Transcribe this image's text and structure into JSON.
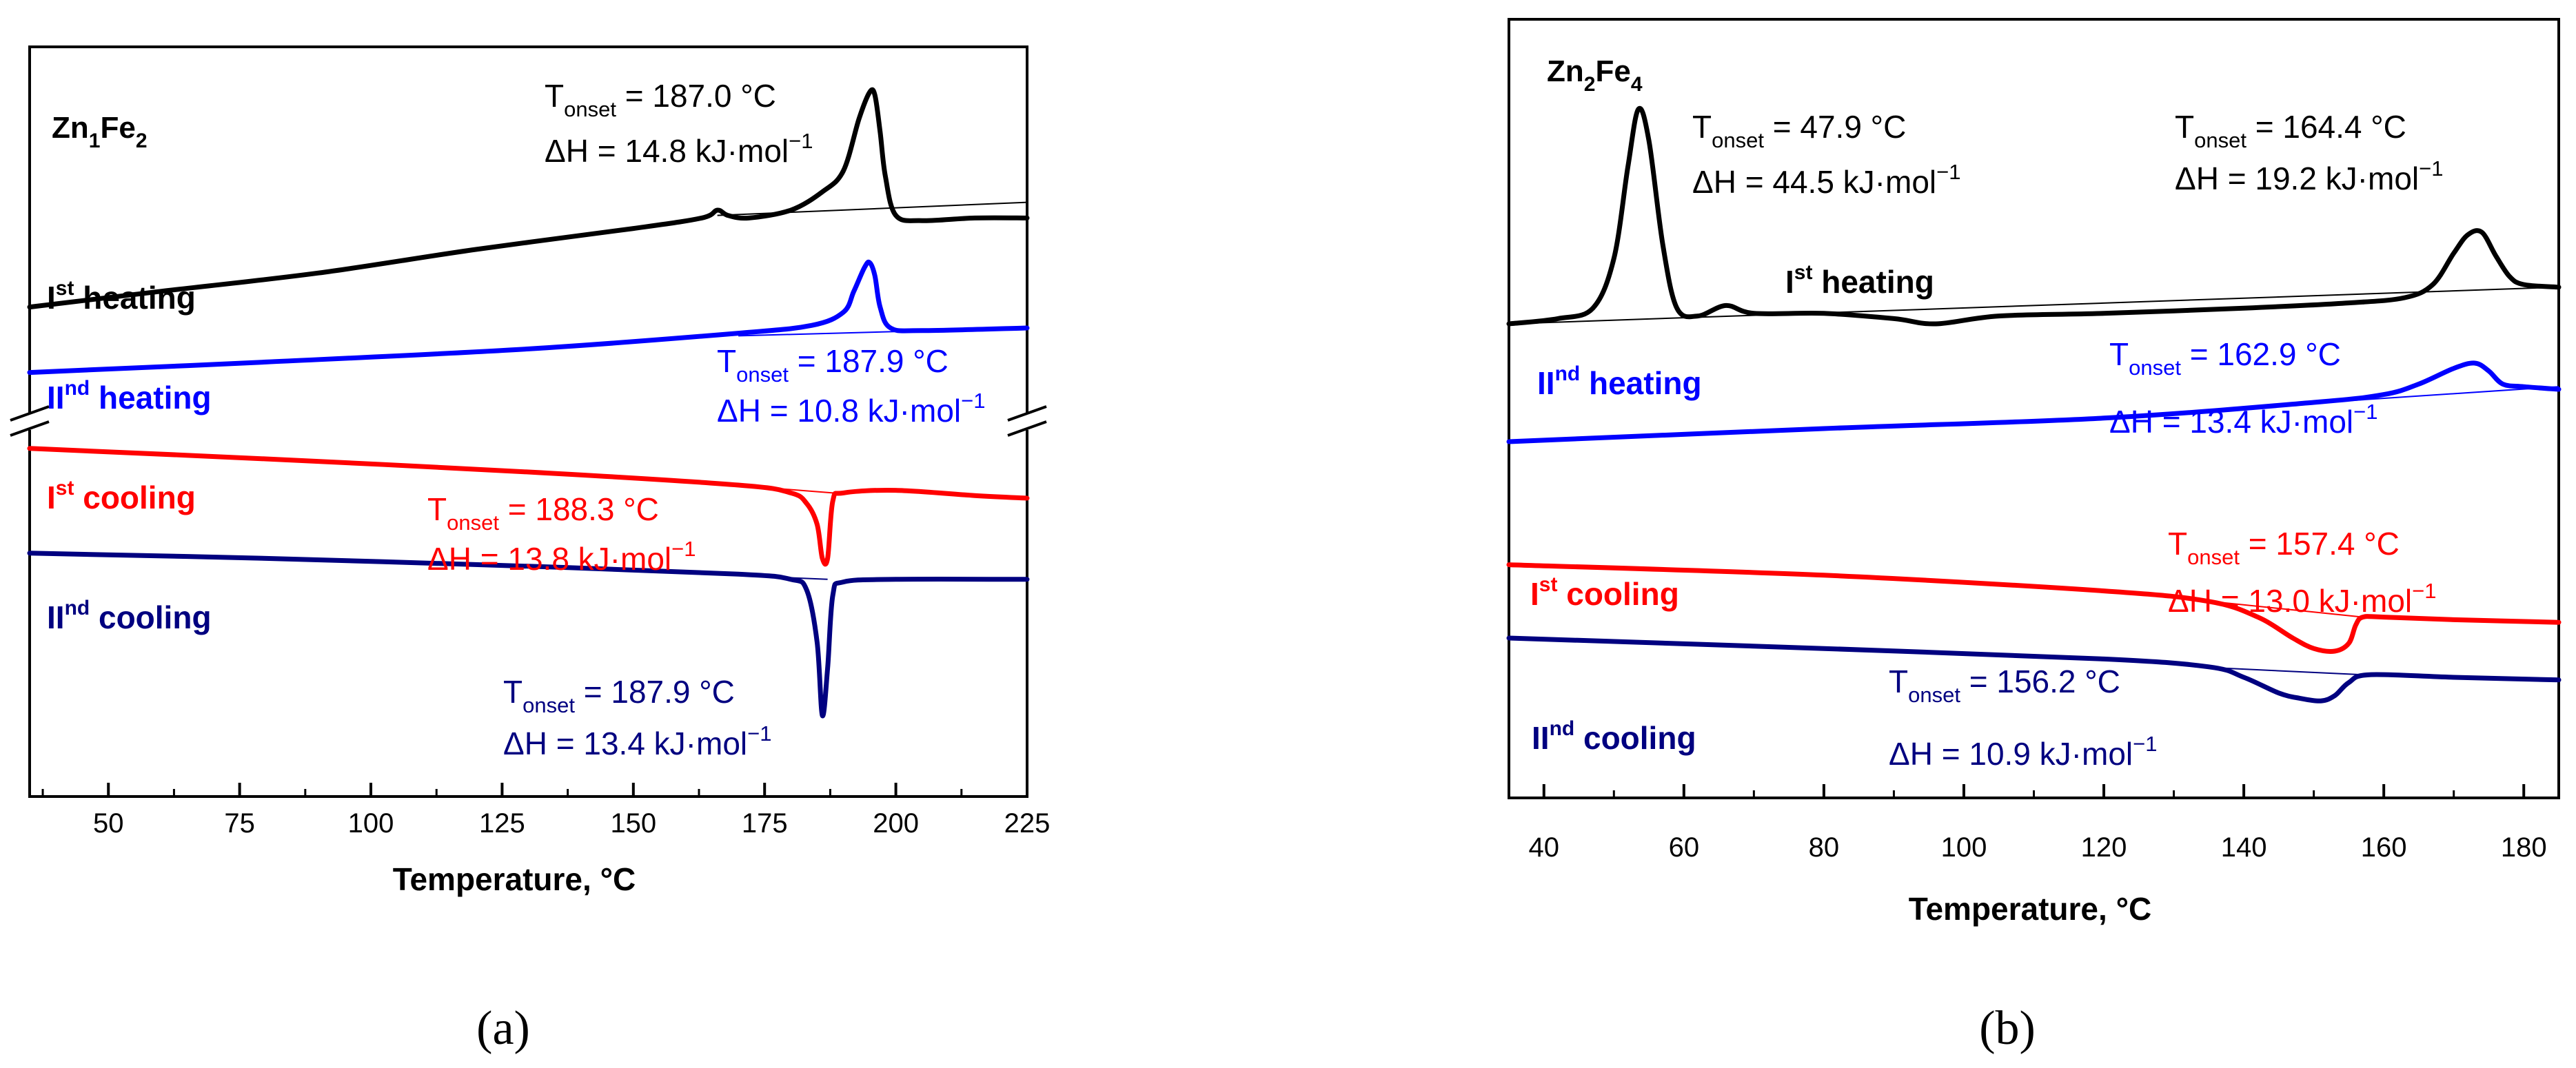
{
  "chart_data": [
    {
      "type": "line",
      "panel_label": "(a)",
      "sample": {
        "base": "Zn",
        "sub1": "1",
        "mid": "Fe",
        "sub2": "2"
      },
      "xlabel": "Temperature, °C",
      "xlim": [
        35,
        225
      ],
      "xticks": [
        "50",
        "75",
        "100",
        "125",
        "150",
        "175",
        "200",
        "225"
      ],
      "xtick_values": [
        50,
        75,
        100,
        125,
        150,
        175,
        200,
        225
      ],
      "axis_break": true,
      "curves": [
        {
          "key": "I_heating",
          "color": "#000000",
          "label_base": "I",
          "label_sup": "st",
          "label_rest": " heating",
          "points": [
            [
              35,
              0.92
            ],
            [
              60,
              0.86
            ],
            [
              90,
              0.79
            ],
            [
              120,
              0.7
            ],
            [
              150,
              0.62
            ],
            [
              163,
              0.58
            ],
            [
              166,
              0.55
            ],
            [
              168,
              0.57
            ],
            [
              172,
              0.58
            ],
            [
              180,
              0.55
            ],
            [
              186,
              0.48
            ],
            [
              190,
              0.4
            ],
            [
              193,
              0.2
            ],
            [
              195,
              0.1
            ],
            [
              196,
              0.11
            ],
            [
              197,
              0.25
            ],
            [
              198,
              0.42
            ],
            [
              200,
              0.57
            ],
            [
              205,
              0.59
            ],
            [
              215,
              0.58
            ],
            [
              225,
              0.58
            ]
          ],
          "baseline": [
            [
              166,
              0.57
            ],
            [
              225,
              0.52
            ]
          ]
        },
        {
          "key": "II_heating",
          "color": "#0000ff",
          "label_base": "II",
          "label_sup": "nd",
          "label_rest": " heating",
          "points": [
            [
              35,
              1.17
            ],
            [
              80,
              1.13
            ],
            [
              130,
              1.08
            ],
            [
              170,
              1.02
            ],
            [
              184,
              0.99
            ],
            [
              190,
              0.94
            ],
            [
              192,
              0.86
            ],
            [
              194,
              0.77
            ],
            [
              195,
              0.75
            ],
            [
              196,
              0.8
            ],
            [
              197,
              0.92
            ],
            [
              199,
              1.0
            ],
            [
              205,
              1.01
            ],
            [
              225,
              1.0
            ]
          ],
          "baseline": [
            [
              170,
              1.03
            ],
            [
              225,
              1.0
            ]
          ]
        },
        {
          "key": "I_cooling",
          "color": "#ff0000",
          "label_base": "I",
          "label_sup": "st",
          "label_rest": " cooling",
          "points": [
            [
              35,
              1.46
            ],
            [
              80,
              1.5
            ],
            [
              130,
              1.55
            ],
            [
              170,
              1.6
            ],
            [
              180,
              1.63
            ],
            [
              183,
              1.67
            ],
            [
              185,
              1.75
            ],
            [
              186,
              1.88
            ],
            [
              187,
              1.88
            ],
            [
              188,
              1.66
            ],
            [
              190,
              1.63
            ],
            [
              200,
              1.62
            ],
            [
              215,
              1.64
            ],
            [
              225,
              1.65
            ]
          ],
          "baseline": [
            [
              150,
              1.57
            ],
            [
              188,
              1.63
            ]
          ]
        },
        {
          "key": "II_cooling",
          "color": "#000080",
          "label_base": "II",
          "label_sup": "nd",
          "label_rest": " cooling",
          "points": [
            [
              35,
              1.86
            ],
            [
              80,
              1.88
            ],
            [
              130,
              1.91
            ],
            [
              170,
              1.94
            ],
            [
              180,
              1.96
            ],
            [
              183,
              2.0
            ],
            [
              185,
              2.2
            ],
            [
              186,
              2.48
            ],
            [
              187,
              2.3
            ],
            [
              188,
              2.02
            ],
            [
              190,
              1.97
            ],
            [
              200,
              1.96
            ],
            [
              225,
              1.96
            ]
          ],
          "baseline": [
            [
              140,
              1.92
            ],
            [
              187,
              1.96
            ]
          ]
        }
      ],
      "annotations": [
        {
          "key": "I_heating",
          "color": "#000000",
          "t_value": "187.0",
          "h_value": "14.8"
        },
        {
          "key": "II_heating",
          "color": "#0000ff",
          "t_value": "187.9",
          "h_value": "10.8"
        },
        {
          "key": "I_cooling",
          "color": "#ff0000",
          "t_value": "188.3",
          "h_value": "13.8"
        },
        {
          "key": "II_cooling",
          "color": "#000080",
          "t_value": "187.9",
          "h_value": "13.4"
        }
      ]
    },
    {
      "type": "line",
      "panel_label": "(b)",
      "sample": {
        "base": "Zn",
        "sub1": "2",
        "mid": "Fe",
        "sub2": "4"
      },
      "xlabel": "Temperature, °C",
      "xlim": [
        35,
        185
      ],
      "xticks": [
        "40",
        "60",
        "80",
        "100",
        "120",
        "140",
        "160",
        "180"
      ],
      "xtick_values": [
        40,
        60,
        80,
        100,
        120,
        140,
        160,
        180
      ],
      "axis_break": false,
      "curves": [
        {
          "key": "I_heating",
          "color": "#000000",
          "label_base": "I",
          "label_sup": "st",
          "label_rest": " heating",
          "points": [
            [
              35,
              1.0
            ],
            [
              42,
              0.98
            ],
            [
              47,
              0.94
            ],
            [
              50,
              0.75
            ],
            [
              52,
              0.4
            ],
            [
              53.5,
              0.18
            ],
            [
              55,
              0.3
            ],
            [
              57,
              0.7
            ],
            [
              59,
              0.94
            ],
            [
              62,
              0.97
            ],
            [
              66,
              0.93
            ],
            [
              70,
              0.96
            ],
            [
              80,
              0.96
            ],
            [
              90,
              0.98
            ],
            [
              96,
              1.0
            ],
            [
              105,
              0.97
            ],
            [
              120,
              0.96
            ],
            [
              140,
              0.94
            ],
            [
              155,
              0.92
            ],
            [
              163,
              0.9
            ],
            [
              167,
              0.85
            ],
            [
              170,
              0.73
            ],
            [
              172,
              0.66
            ],
            [
              174,
              0.65
            ],
            [
              176,
              0.74
            ],
            [
              178,
              0.82
            ],
            [
              180,
              0.85
            ],
            [
              185,
              0.86
            ]
          ],
          "baseline": [
            [
              35,
              1.0
            ],
            [
              185,
              0.86
            ]
          ]
        },
        {
          "key": "II_heating",
          "color": "#0000ff",
          "label_base": "II",
          "label_sup": "nd",
          "label_rest": " heating",
          "points": [
            [
              35,
              1.45
            ],
            [
              80,
              1.4
            ],
            [
              120,
              1.36
            ],
            [
              150,
              1.3
            ],
            [
              160,
              1.27
            ],
            [
              165,
              1.23
            ],
            [
              170,
              1.17
            ],
            [
              173,
              1.15
            ],
            [
              175,
              1.18
            ],
            [
              177,
              1.23
            ],
            [
              180,
              1.24
            ],
            [
              185,
              1.25
            ]
          ],
          "baseline": [
            [
              140,
              1.32
            ],
            [
              185,
              1.24
            ]
          ]
        },
        {
          "key": "I_cooling",
          "color": "#ff0000",
          "label_base": "I",
          "label_sup": "st",
          "label_rest": " cooling",
          "points": [
            [
              35,
              1.92
            ],
            [
              80,
              1.96
            ],
            [
              120,
              2.02
            ],
            [
              135,
              2.06
            ],
            [
              142,
              2.12
            ],
            [
              147,
              2.2
            ],
            [
              150,
              2.24
            ],
            [
              153,
              2.25
            ],
            [
              155,
              2.22
            ],
            [
              156,
              2.15
            ],
            [
              157,
              2.12
            ],
            [
              160,
              2.12
            ],
            [
              170,
              2.13
            ],
            [
              185,
              2.14
            ]
          ],
          "baseline": [
            [
              128,
              2.04
            ],
            [
              157,
              2.12
            ]
          ]
        },
        {
          "key": "II_cooling",
          "color": "#000080",
          "label_base": "II",
          "label_sup": "nd",
          "label_rest": " cooling",
          "points": [
            [
              35,
              2.2
            ],
            [
              80,
              2.24
            ],
            [
              120,
              2.28
            ],
            [
              135,
              2.31
            ],
            [
              140,
              2.35
            ],
            [
              145,
              2.41
            ],
            [
              148,
              2.43
            ],
            [
              151,
              2.44
            ],
            [
              153,
              2.42
            ],
            [
              155,
              2.37
            ],
            [
              158,
              2.34
            ],
            [
              170,
              2.35
            ],
            [
              185,
              2.36
            ]
          ],
          "baseline": [
            [
              133,
              2.31
            ],
            [
              157,
              2.34
            ]
          ]
        }
      ],
      "annotations": [
        {
          "key": "I_heating_low",
          "color": "#000000",
          "t_value": "47.9",
          "h_value": "44.5"
        },
        {
          "key": "I_heating_high",
          "color": "#000000",
          "t_value": "164.4",
          "h_value": "19.2"
        },
        {
          "key": "II_heating",
          "color": "#0000ff",
          "t_value": "162.9",
          "h_value": "13.4"
        },
        {
          "key": "I_cooling",
          "color": "#ff0000",
          "t_value": "157.4",
          "h_value": "13.0"
        },
        {
          "key": "II_cooling",
          "color": "#000080",
          "t_value": "156.2",
          "h_value": "10.9"
        }
      ]
    }
  ],
  "common": {
    "t_symbol": "T",
    "t_subscript": "onset",
    "t_equals": " = ",
    "unit_celsius": " °C",
    "h_symbol": "ΔH = ",
    "h_unit": " kJ·mol",
    "h_exponent": "−1"
  }
}
